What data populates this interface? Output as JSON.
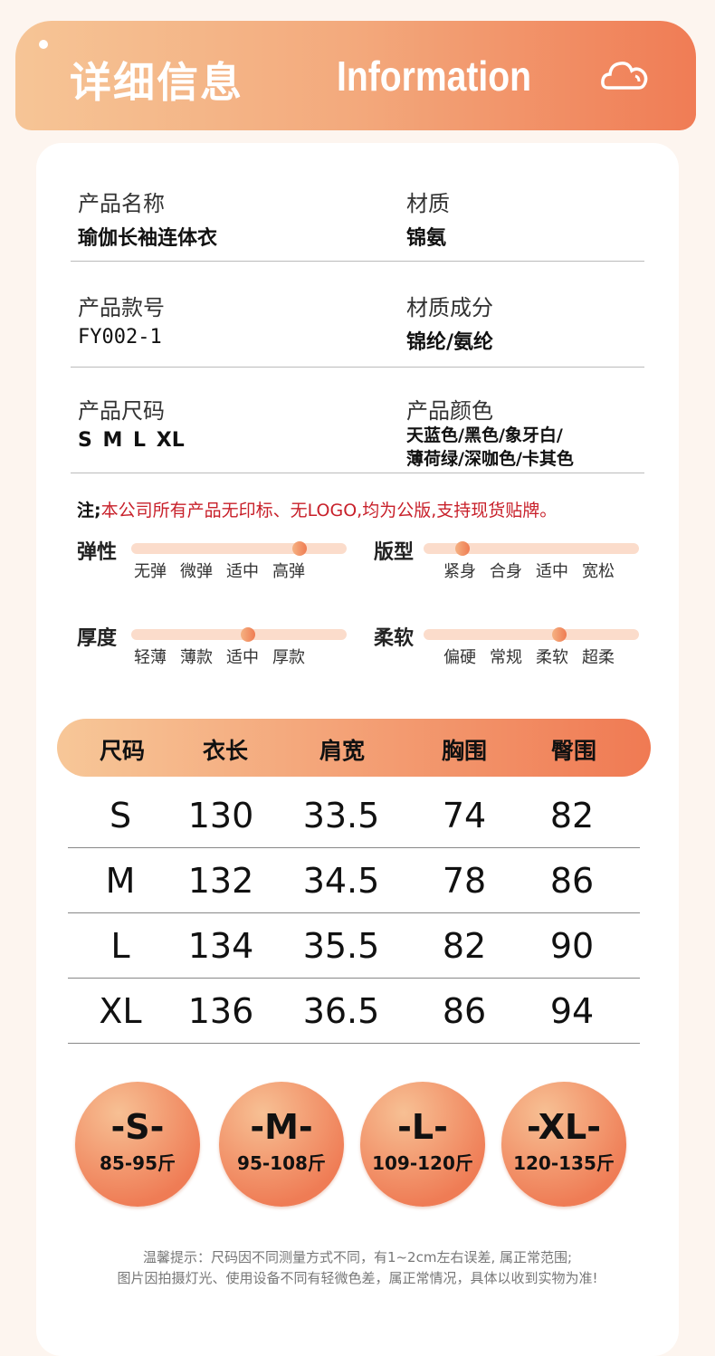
{
  "header": {
    "title_cn": "详细信息",
    "title_en": "Information",
    "icon": "cloud-icon"
  },
  "info": [
    {
      "label": "产品名称",
      "value": "瑜伽长袖连体衣"
    },
    {
      "label": "材质",
      "value": "锦氨"
    },
    {
      "label": "产品款号",
      "value": "FY002-1"
    },
    {
      "label": "材质成分",
      "value": "锦纶/氨纶"
    },
    {
      "label": "产品尺码",
      "value": "S M L XL"
    },
    {
      "label": "产品颜色",
      "value_line1": "天蓝色/黑色/象牙白/",
      "value_line2": "薄荷绿/深咖色/卡其色"
    }
  ],
  "note": {
    "prefix": "注;",
    "text": "本公司所有产品无印标、无LOGO,均为公版,支持现货贴牌。"
  },
  "sliders": [
    {
      "label": "弹性",
      "ticks": [
        "无弹",
        "微弹",
        "适中",
        "高弹"
      ],
      "level": 0.78
    },
    {
      "label": "版型",
      "ticks": [
        "紧身",
        "合身",
        "适中",
        "宽松"
      ],
      "level": 0.18
    },
    {
      "label": "厚度",
      "ticks": [
        "轻薄",
        "薄款",
        "适中",
        "厚款"
      ],
      "level": 0.54
    },
    {
      "label": "柔软",
      "ticks": [
        "偏硬",
        "常规",
        "柔软",
        "超柔"
      ],
      "level": 0.63
    }
  ],
  "size_table": {
    "headers": [
      "尺码",
      "衣长",
      "肩宽",
      "胸围",
      "臀围"
    ],
    "rows": [
      [
        "S",
        "130",
        "33.5",
        "74",
        "82"
      ],
      [
        "M",
        "132",
        "34.5",
        "78",
        "86"
      ],
      [
        "L",
        "134",
        "35.5",
        "82",
        "90"
      ],
      [
        "XL",
        "136",
        "36.5",
        "86",
        "94"
      ]
    ]
  },
  "weights": [
    {
      "size": "-S-",
      "range": "85-95斤"
    },
    {
      "size": "-M-",
      "range": "95-108斤"
    },
    {
      "size": "-L-",
      "range": "109-120斤"
    },
    {
      "size": "-XL-",
      "range": "120-135斤"
    }
  ],
  "tips": {
    "line1": "温馨提示：尺码因不同测量方式不同，有1~2cm左右误差, 属正常范围;",
    "line2": "图片因拍摄灯光、使用设备不同有轻微色差，属正常情况，具体以收到实物为准!"
  },
  "colors": {
    "accent_start": "#f6c596",
    "accent_end": "#f07c55",
    "note": "#c8202a"
  }
}
